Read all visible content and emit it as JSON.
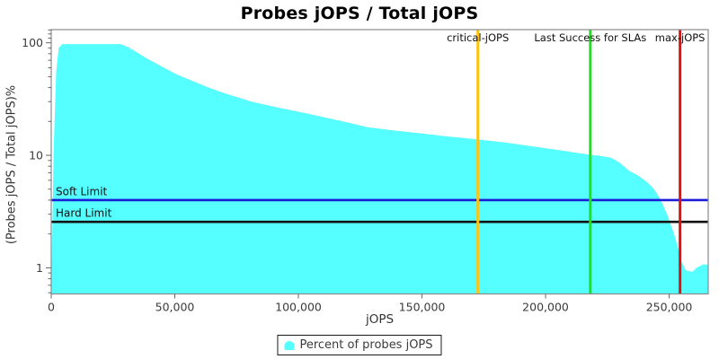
{
  "chart_data": {
    "type": "area",
    "title": "Probes jOPS / Total jOPS",
    "xlabel": "jOPS",
    "ylabel": "(Probes jOPS / Total jOPS)%",
    "y_scale": "log",
    "xlim": [
      0,
      265800
    ],
    "ylim_log": [
      0.586,
      131
    ],
    "grid": false,
    "x_ticks": [
      {
        "value": 0,
        "label": "0"
      },
      {
        "value": 50000,
        "label": "50,000"
      },
      {
        "value": 100000,
        "label": "100,000"
      },
      {
        "value": 150000,
        "label": "150,000"
      },
      {
        "value": 200000,
        "label": "200,000"
      },
      {
        "value": 250000,
        "label": "250,000"
      }
    ],
    "y_ticks": [
      {
        "value": 1,
        "label": "1"
      },
      {
        "value": 10,
        "label": "10"
      },
      {
        "value": 100,
        "label": "100"
      }
    ],
    "series": [
      {
        "name": "Percent of probes jOPS",
        "color": "#55FFFF",
        "points": [
          [
            0,
            0.6
          ],
          [
            1000,
            12
          ],
          [
            2000,
            55
          ],
          [
            3000,
            90
          ],
          [
            4500,
            97.5
          ],
          [
            28000,
            97.5
          ],
          [
            31000,
            92
          ],
          [
            34000,
            84
          ],
          [
            38500,
            73
          ],
          [
            45000,
            61
          ],
          [
            51000,
            52
          ],
          [
            57000,
            46
          ],
          [
            63000,
            40.5
          ],
          [
            69000,
            36.3
          ],
          [
            75000,
            33
          ],
          [
            81000,
            30
          ],
          [
            92000,
            26.5
          ],
          [
            104000,
            23.4
          ],
          [
            116000,
            20.5
          ],
          [
            128000,
            17.8
          ],
          [
            139000,
            16.6
          ],
          [
            150000,
            15.6
          ],
          [
            162000,
            14.6
          ],
          [
            173000,
            13.8
          ],
          [
            185000,
            12.9
          ],
          [
            196000,
            11.9
          ],
          [
            207000,
            11.0
          ],
          [
            218000,
            10.1
          ],
          [
            222000,
            9.9
          ],
          [
            226500,
            9.5
          ],
          [
            230000,
            8.6
          ],
          [
            233800,
            7.3
          ],
          [
            237500,
            6.6
          ],
          [
            241000,
            5.8
          ],
          [
            243600,
            5.1
          ],
          [
            245500,
            4.4
          ],
          [
            247300,
            3.7
          ],
          [
            249400,
            2.9
          ],
          [
            252000,
            2.0
          ],
          [
            253800,
            1.45
          ],
          [
            254900,
            1.15
          ],
          [
            256700,
            0.95
          ],
          [
            259300,
            0.92
          ],
          [
            261100,
            1.0
          ],
          [
            263600,
            1.07
          ],
          [
            265800,
            1.07
          ]
        ]
      }
    ],
    "vlines": [
      {
        "label": "critical-jOPS",
        "value": 172600,
        "color": "#FFC112"
      },
      {
        "label": "Last Success for SLAs",
        "value": 218100,
        "color": "#1FE11F"
      },
      {
        "label": "max-jOPS",
        "value": 254400,
        "color": "#E31212"
      }
    ],
    "hlines": [
      {
        "label": "Soft Limit",
        "value": 4.0,
        "color": "#1C1CD6"
      },
      {
        "label": "Hard Limit",
        "value": 2.56,
        "color": "#111111"
      }
    ],
    "legend": {
      "label": "Percent of probes jOPS",
      "marker_color": "#55FFFF",
      "position": "bottom"
    },
    "style": {
      "area_color": "#55FFFF",
      "border_color": "#8a8a8a",
      "tick_color": "#666666",
      "tick_label_color": "#3b3b3b",
      "line_label_color": "#111111",
      "title_color": "#000000"
    }
  }
}
